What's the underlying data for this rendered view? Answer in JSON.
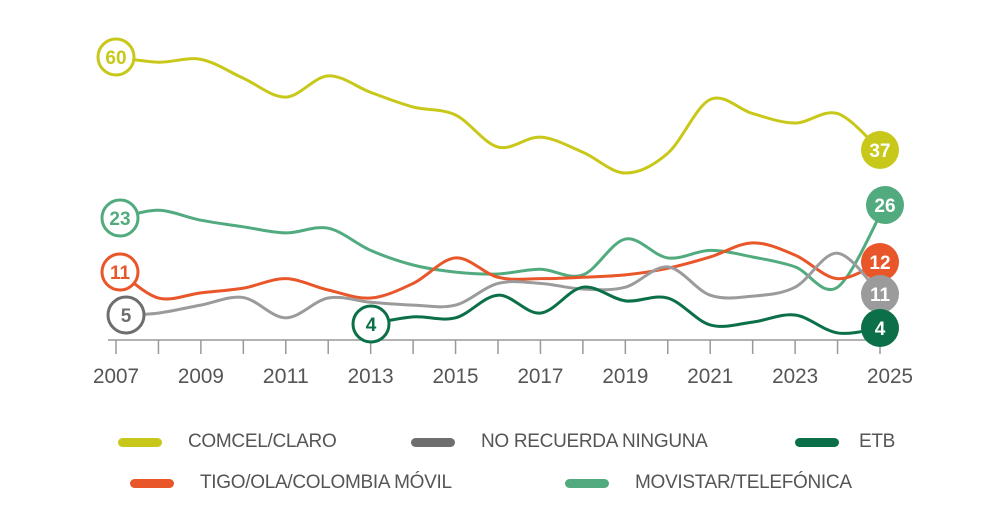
{
  "chart_data": {
    "type": "line",
    "title": "",
    "xlabel": "",
    "ylabel": "",
    "x_tick_labels": [
      "2007",
      "2009",
      "2011",
      "2013",
      "2015",
      "2017",
      "2019",
      "2021",
      "2023",
      "2025"
    ],
    "xlim": [
      2007,
      2025
    ],
    "ylim": [
      0,
      60
    ],
    "grid": false,
    "legend_position": "bottom",
    "x": [
      2007,
      2008,
      2009,
      2010,
      2011,
      2012,
      2013,
      2014,
      2015,
      2016,
      2017,
      2018,
      2019,
      2020,
      2021,
      2022,
      2023,
      2024,
      2025
    ],
    "series": [
      {
        "name": "COMCEL/CLARO",
        "color": "#c8c81a",
        "start_label": "60",
        "end_label": "37",
        "values": [
          60,
          58.9,
          59.5,
          55.5,
          51.5,
          56,
          52.5,
          49.4,
          47.7,
          40.9,
          43,
          39.8,
          35.4,
          39.6,
          51,
          48,
          46,
          48,
          37
        ]
      },
      {
        "name": "MOVISTAR/TELEFÓNICA",
        "color": "#52ab7f",
        "start_label": "23",
        "end_label": "26",
        "values": [
          23,
          27.5,
          25.4,
          24,
          22.7,
          23.7,
          19,
          15.9,
          14.4,
          14,
          15,
          13.8,
          21.4,
          17.4,
          19,
          17.6,
          15.5,
          11.2,
          26
        ]
      },
      {
        "name": "TIGO/OLA/COLOMBIA MÓVIL",
        "color": "#e8562a",
        "start_label": "11",
        "end_label": "12",
        "values": [
          11,
          8.9,
          10,
          11,
          13,
          10.6,
          8.9,
          12,
          17.4,
          13.3,
          13,
          13.3,
          13.8,
          15.2,
          17.6,
          20.6,
          18,
          13,
          12
        ]
      },
      {
        "name": "NO RECUERDA NINGUNA",
        "color": "#9b9b9b",
        "start_label": "5",
        "end_label": "11",
        "values": [
          5,
          5.7,
          7.4,
          9,
          4.7,
          8.9,
          8,
          7.4,
          7.4,
          12,
          12,
          10.8,
          11.2,
          15.5,
          9.5,
          9.3,
          11.2,
          18.4,
          11
        ]
      },
      {
        "name": "ETB",
        "color": "#0b7048",
        "start_label": "4",
        "end_label": "4",
        "values": [
          null,
          null,
          null,
          null,
          null,
          null,
          4,
          4.9,
          4.7,
          9.5,
          5.7,
          11.2,
          8.3,
          8.9,
          3.2,
          3.8,
          5.3,
          1.5,
          4
        ]
      }
    ]
  },
  "legend": {
    "row1": [
      {
        "label": "COMCEL/CLARO",
        "color": "#c8c81a"
      },
      {
        "label": "NO RECUERDA NINGUNA",
        "color": "#6e6e6e"
      },
      {
        "label": "ETB",
        "color": "#0b7048"
      }
    ],
    "row2": [
      {
        "label": "TIGO/OLA/COLOMBIA MÓVIL",
        "color": "#e8562a"
      },
      {
        "label": "MOVISTAR/TELEFÓNICA",
        "color": "#52ab7f"
      }
    ]
  }
}
